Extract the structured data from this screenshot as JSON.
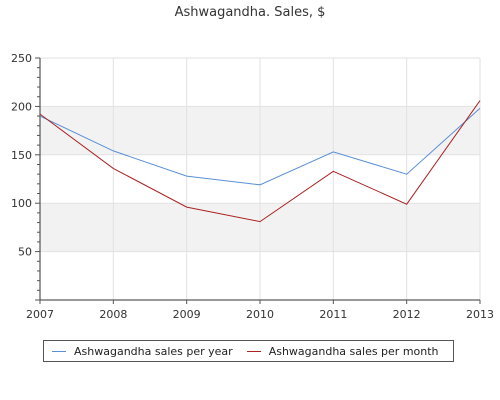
{
  "chart_data": {
    "type": "line",
    "title": "Ashwagandha. Sales, $",
    "x": [
      "2007",
      "2008",
      "2009",
      "2010",
      "2011",
      "2012",
      "2013"
    ],
    "ylim": [
      0,
      250
    ],
    "yticks": [
      50,
      100,
      150,
      200,
      250
    ],
    "grid": true,
    "legend_position": "bottom",
    "series": [
      {
        "name": "Ashwagandha sales per year",
        "color": "#5b8fd6",
        "values": [
          190,
          154,
          128,
          119,
          153,
          130,
          198
        ]
      },
      {
        "name": "Ashwagandha sales per month",
        "color": "#aa2222",
        "values": [
          192,
          136,
          96,
          81,
          133,
          99,
          206
        ]
      }
    ]
  }
}
